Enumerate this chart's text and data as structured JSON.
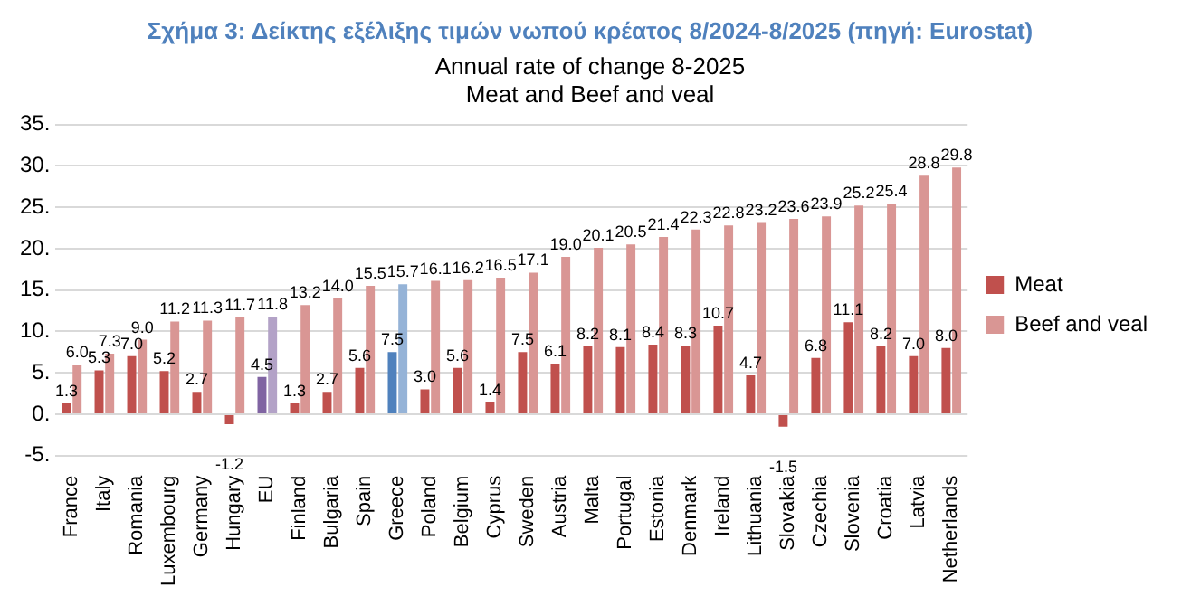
{
  "chart_data": {
    "type": "bar",
    "title": "Σχήμα 3: Δείκτης εξέλιξης τιμών νωπού κρέατος 8/2024-8/2025 (πηγή: Eurostat)",
    "subtitle": "Annual rate of change 8-2025\nMeat and Beef and veal",
    "categories": [
      "France",
      "Italy",
      "Romania",
      "Luxembourg",
      "Germany",
      "Hungary",
      "EU",
      "Finland",
      "Bulgaria",
      "Spain",
      "Greece",
      "Poland",
      "Belgium",
      "Cyprus",
      "Sweden",
      "Austria",
      "Malta",
      "Portugal",
      "Estonia",
      "Denmark",
      "Ireland",
      "Lithuania",
      "Slovakia",
      "Czechia",
      "Slovenia",
      "Croatia",
      "Latvia",
      "Netherlands"
    ],
    "series": [
      {
        "name": "Meat",
        "color": "#c0504d",
        "colors": [
          "#c0504d",
          "#c0504d",
          "#c0504d",
          "#c0504d",
          "#c0504d",
          "#c0504d",
          "#8064a2",
          "#c0504d",
          "#c0504d",
          "#c0504d",
          "#4f81bd",
          "#c0504d",
          "#c0504d",
          "#c0504d",
          "#c0504d",
          "#c0504d",
          "#c0504d",
          "#c0504d",
          "#c0504d",
          "#c0504d",
          "#c0504d",
          "#c0504d",
          "#c0504d",
          "#c0504d",
          "#c0504d",
          "#c0504d",
          "#c0504d",
          "#c0504d"
        ],
        "values": [
          1.3,
          5.3,
          7.0,
          5.2,
          2.7,
          -1.2,
          4.5,
          1.3,
          2.7,
          5.6,
          7.5,
          3.0,
          5.6,
          1.4,
          7.5,
          6.1,
          8.2,
          8.1,
          8.4,
          8.3,
          10.7,
          4.7,
          -1.5,
          6.8,
          11.1,
          8.2,
          7.0,
          8.0
        ],
        "value_labels": [
          "1.3",
          "5.3",
          "7.0",
          "5.2",
          "2.7",
          "-1.2",
          "4.5",
          "1.3",
          "2.7",
          "5.6",
          "7.5",
          "3.0",
          "5.6",
          "1.4",
          "7.5",
          "6.1",
          "8.2",
          "8.1",
          "8.4",
          "8.3",
          "10.7",
          "4.7",
          "-1.5",
          "6.8",
          "11.1",
          "8.2",
          "7.0",
          "8.0"
        ]
      },
      {
        "name": "Beef and veal",
        "color": "#d99694",
        "colors": [
          "#d99694",
          "#d99694",
          "#d99694",
          "#d99694",
          "#d99694",
          "#d99694",
          "#b3a2c7",
          "#d99694",
          "#d99694",
          "#d99694",
          "#95b3d7",
          "#d99694",
          "#d99694",
          "#d99694",
          "#d99694",
          "#d99694",
          "#d99694",
          "#d99694",
          "#d99694",
          "#d99694",
          "#d99694",
          "#d99694",
          "#d99694",
          "#d99694",
          "#d99694",
          "#d99694",
          "#d99694",
          "#d99694"
        ],
        "values": [
          6.0,
          7.3,
          9.0,
          11.2,
          11.3,
          11.7,
          11.8,
          13.2,
          14.0,
          15.5,
          15.7,
          16.1,
          16.2,
          16.5,
          17.1,
          19.0,
          20.1,
          20.5,
          21.4,
          22.3,
          22.8,
          23.2,
          23.6,
          23.9,
          25.2,
          25.4,
          28.8,
          29.8
        ],
        "value_labels": [
          "6.0",
          "7.3",
          "9.0",
          "11.2",
          "11.3",
          "11.7",
          "11.8",
          "13.2",
          "14.0",
          "15.5",
          "15.7",
          "16.1",
          "16.2",
          "16.5",
          "17.1",
          "19.0",
          "20.1",
          "20.5",
          "21.4",
          "22.3",
          "22.8",
          "23.2",
          "23.6",
          "23.9",
          "25.2",
          "25.4",
          "28.8",
          "29.8"
        ]
      }
    ],
    "ylim": [
      -5,
      35
    ],
    "yticks": [
      {
        "value": -5,
        "label": "-5."
      },
      {
        "value": 0,
        "label": "0."
      },
      {
        "value": 5,
        "label": "5."
      },
      {
        "value": 10,
        "label": "10."
      },
      {
        "value": 15,
        "label": "15."
      },
      {
        "value": 20,
        "label": "20."
      },
      {
        "value": 25,
        "label": "25."
      },
      {
        "value": 30,
        "label": "30."
      },
      {
        "value": 35,
        "label": "35."
      }
    ],
    "grid": "y",
    "legend": "right"
  }
}
